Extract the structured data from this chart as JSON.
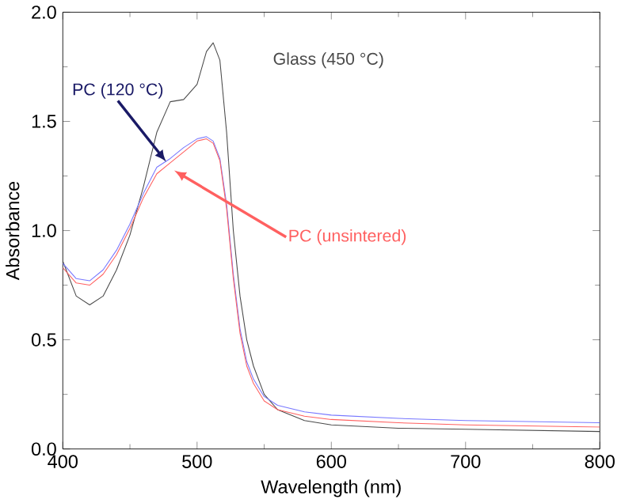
{
  "chart_data": {
    "type": "line",
    "xlabel": "Wavelength (nm)",
    "ylabel": "Absorbance",
    "xlim": [
      400,
      800
    ],
    "ylim": [
      0,
      2.0
    ],
    "xticks": [
      400,
      500,
      600,
      700,
      800
    ],
    "yticks": [
      {
        "value": 0,
        "label": "0.0"
      },
      {
        "value": 0.5,
        "label": "0.5"
      },
      {
        "value": 1.0,
        "label": "1.0"
      },
      {
        "value": 1.5,
        "label": "1.5"
      },
      {
        "value": 2.0,
        "label": "2.0"
      }
    ],
    "grid": false,
    "marker": "none",
    "line_style": "solid",
    "x": [
      400,
      410,
      420,
      430,
      440,
      450,
      460,
      470,
      480,
      490,
      500,
      507,
      512,
      517,
      522,
      527,
      532,
      537,
      542,
      550,
      560,
      580,
      600,
      650,
      700,
      750,
      800
    ],
    "series": [
      {
        "name": "Glass (450 °C)",
        "color": "#4a4a4a",
        "values": [
          0.86,
          0.7,
          0.66,
          0.7,
          0.82,
          0.98,
          1.2,
          1.45,
          1.59,
          1.6,
          1.67,
          1.82,
          1.86,
          1.78,
          1.45,
          1.0,
          0.7,
          0.5,
          0.38,
          0.25,
          0.18,
          0.13,
          0.11,
          0.095,
          0.09,
          0.085,
          0.08
        ]
      },
      {
        "name": "PC (120 °C)",
        "color": "#7777ff",
        "values": [
          0.85,
          0.78,
          0.77,
          0.82,
          0.91,
          1.03,
          1.17,
          1.29,
          1.33,
          1.38,
          1.42,
          1.43,
          1.41,
          1.33,
          1.12,
          0.8,
          0.55,
          0.4,
          0.32,
          0.24,
          0.2,
          0.17,
          0.155,
          0.14,
          0.13,
          0.125,
          0.12
        ]
      },
      {
        "name": "PC (unsintered)",
        "color": "#ff6060",
        "values": [
          0.83,
          0.76,
          0.75,
          0.8,
          0.89,
          1.01,
          1.15,
          1.26,
          1.31,
          1.36,
          1.41,
          1.42,
          1.4,
          1.32,
          1.1,
          0.78,
          0.53,
          0.38,
          0.3,
          0.22,
          0.18,
          0.15,
          0.135,
          0.12,
          0.11,
          0.105,
          0.1
        ]
      }
    ]
  }
}
